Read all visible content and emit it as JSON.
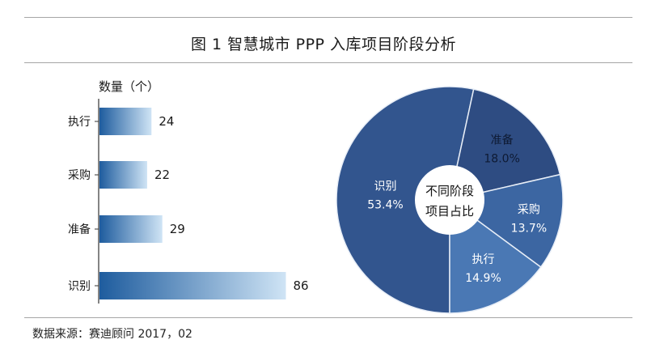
{
  "title": "图 1   智慧城市 PPP 入库项目阶段分析",
  "source": "数据来源：赛迪顾问    2017，02",
  "colors": {
    "bar_dark": "#1e5c9e",
    "bar_light": "#cfe4f5",
    "pie_big": "#32558e",
    "pie_zhunbei": "#2e4c82",
    "pie_caigou": "#3c66a2",
    "pie_zhixing": "#4a78b4",
    "pie_border": "#e8eef7"
  },
  "chart_data": [
    {
      "type": "bar",
      "orientation": "horizontal",
      "ylabel": "数量（个）",
      "categories": [
        "执行",
        "采购",
        "准备",
        "识别"
      ],
      "values": [
        24,
        22,
        29,
        86
      ]
    },
    {
      "type": "pie",
      "center_label": [
        "不同阶段",
        "项目占比"
      ],
      "labels": [
        "识别",
        "准备",
        "采购",
        "执行"
      ],
      "values": [
        53.4,
        18.0,
        13.7,
        14.9
      ],
      "value_labels": [
        "53.4%",
        "18.0%",
        "13.7%",
        "14.9%"
      ]
    }
  ]
}
